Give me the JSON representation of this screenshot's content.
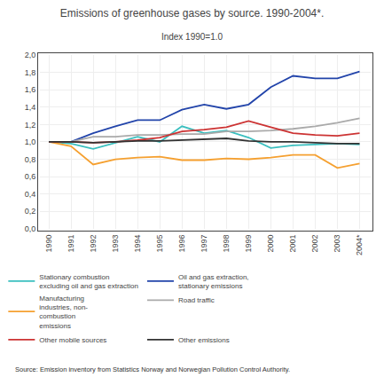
{
  "chart_data": {
    "type": "line",
    "title": "Emissions of greenhouse gases by source. 1990-2004*.",
    "subtitle": "Index 1990=1.0",
    "annotations": [
      "Source: Emission inventory from Statistics Norway and Norwegian Pollution Control Authority."
    ],
    "x": [
      1990,
      1991,
      1992,
      1993,
      1994,
      1995,
      1996,
      1997,
      1998,
      1999,
      2000,
      2001,
      2002,
      2003,
      2004
    ],
    "series": [
      {
        "name": "Stationary combustion\nexcluding oil and gas extraction",
        "color": "#3BBFBF",
        "values": [
          1.0,
          0.98,
          0.92,
          0.99,
          1.06,
          1.0,
          1.18,
          1.1,
          1.13,
          1.05,
          0.93,
          0.96,
          0.97,
          0.98,
          0.97
        ]
      },
      {
        "name": "Oil and gas extraction,\nstationary emissions",
        "color": "#2244AA",
        "values": [
          1.0,
          1.0,
          1.1,
          1.18,
          1.25,
          1.25,
          1.37,
          1.43,
          1.38,
          1.43,
          1.63,
          1.76,
          1.73,
          1.73,
          1.81
        ]
      },
      {
        "name": "Manufacturing\nindustries, non-\ncombustion\nemissions",
        "color": "#F5A030",
        "values": [
          1.0,
          0.95,
          0.74,
          0.8,
          0.82,
          0.83,
          0.79,
          0.79,
          0.81,
          0.8,
          0.82,
          0.85,
          0.85,
          0.7,
          0.75
        ]
      },
      {
        "name": "Road traffic",
        "color": "#AAAAAA",
        "values": [
          1.0,
          1.0,
          1.06,
          1.06,
          1.08,
          1.08,
          1.09,
          1.09,
          1.12,
          1.12,
          1.13,
          1.15,
          1.18,
          1.22,
          1.27
        ]
      },
      {
        "name": "Other mobile sources",
        "color": "#CC3333",
        "values": [
          1.0,
          1.0,
          0.99,
          1.0,
          1.02,
          1.05,
          1.12,
          1.14,
          1.17,
          1.24,
          1.17,
          1.1,
          1.08,
          1.07,
          1.1
        ]
      },
      {
        "name": "Other emissions",
        "color": "#333333",
        "values": [
          1.0,
          1.0,
          0.99,
          1.0,
          1.01,
          1.01,
          1.02,
          1.03,
          1.04,
          1.01,
          1.0,
          1.0,
          0.99,
          0.98,
          0.98
        ]
      }
    ],
    "xlim": [
      1989.6,
      2004.5
    ],
    "xticks": [
      1990,
      1991,
      1992,
      1993,
      1994,
      1995,
      1996,
      1997,
      1998,
      1999,
      2000,
      2001,
      2002,
      2003,
      {
        "value": 2004,
        "label": "2004*"
      }
    ],
    "ylim": [
      0.0,
      2.0
    ],
    "yticks": [
      {
        "value": 0.0,
        "label": "0,0"
      },
      {
        "value": 0.2,
        "label": "0,2"
      },
      {
        "value": 0.4,
        "label": "0,4"
      },
      {
        "value": 0.6,
        "label": "0,6"
      },
      {
        "value": 0.8,
        "label": "0,8"
      },
      {
        "value": 1.0,
        "label": "1,0"
      },
      {
        "value": 1.2,
        "label": "1,2"
      },
      {
        "value": 1.4,
        "label": "1,4"
      },
      {
        "value": 1.6,
        "label": "1,6"
      },
      {
        "value": 1.8,
        "label": "1,8"
      },
      {
        "value": 2.0,
        "label": "2,0"
      }
    ],
    "grid": true,
    "legend": "bottom"
  }
}
